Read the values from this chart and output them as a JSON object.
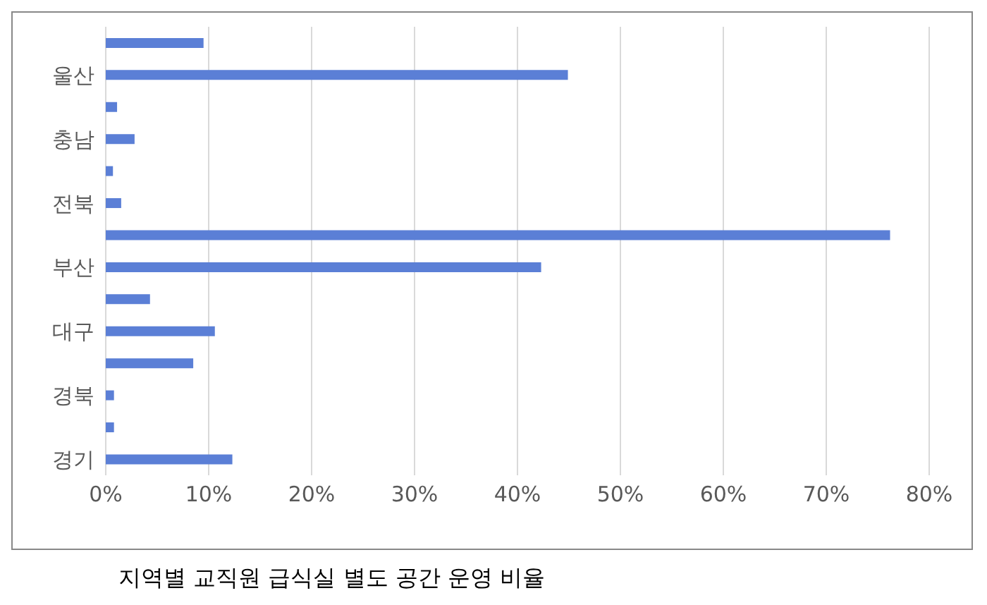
{
  "chart_data": {
    "type": "bar",
    "orientation": "horizontal",
    "title": "지역별 교직원 급식실 별도 공간 운영 비율",
    "categories": [
      null,
      "울산",
      null,
      "충남",
      null,
      "전북",
      null,
      "부산",
      null,
      "대구",
      null,
      "경북",
      null,
      "경기"
    ],
    "values": [
      9.5,
      44.9,
      1.1,
      2.8,
      0.7,
      1.5,
      76.2,
      42.3,
      4.3,
      10.6,
      8.5,
      0.8,
      0.8,
      12.3
    ],
    "color": "#5b7fd6",
    "xlim": [
      0,
      80
    ],
    "xticks": [
      {
        "value": 0,
        "label": "0%"
      },
      {
        "value": 10,
        "label": "10%"
      },
      {
        "value": 20,
        "label": "20%"
      },
      {
        "value": 30,
        "label": "30%"
      },
      {
        "value": 40,
        "label": "40%"
      },
      {
        "value": 50,
        "label": "50%"
      },
      {
        "value": 60,
        "label": "60%"
      },
      {
        "value": 70,
        "label": "70%"
      },
      {
        "value": 80,
        "label": "80%"
      }
    ],
    "grid": "x"
  }
}
